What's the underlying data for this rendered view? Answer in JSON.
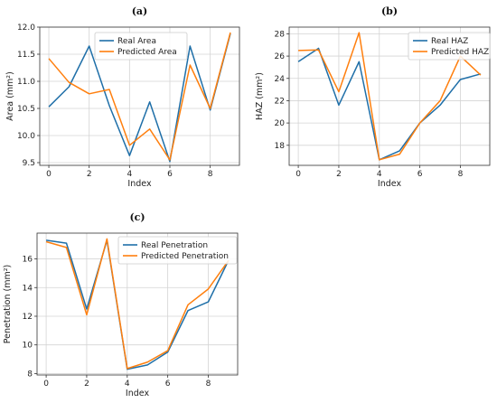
{
  "chart_data": [
    {
      "type": "line",
      "panel_label": "(a)",
      "xlabel": "Index",
      "ylabel": "Area (mm²)",
      "xlim": [
        -0.45,
        9.45
      ],
      "ylim": [
        9.45,
        12.0
      ],
      "xticks": [
        0,
        2,
        4,
        6,
        8
      ],
      "yticks": [
        9.5,
        10.0,
        10.5,
        11.0,
        11.5,
        12.0
      ],
      "ytick_labels": [
        "9.5",
        "10.0",
        "10.5",
        "11.0",
        "11.5",
        "12.0"
      ],
      "grid": true,
      "legend_position": "top-center",
      "x": [
        0,
        1,
        2,
        3,
        4,
        5,
        6,
        7,
        8,
        9
      ],
      "series": [
        {
          "name": "Real Area",
          "color": "#1f6fa8",
          "values": [
            10.53,
            10.9,
            11.65,
            10.55,
            9.63,
            10.62,
            9.52,
            11.65,
            10.47,
            11.88
          ]
        },
        {
          "name": "Predicted Area",
          "color": "#ff7f0e",
          "values": [
            11.42,
            10.98,
            10.77,
            10.85,
            9.82,
            10.12,
            9.55,
            11.3,
            10.5,
            11.9
          ]
        }
      ]
    },
    {
      "type": "line",
      "panel_label": "(b)",
      "xlabel": "Index",
      "ylabel": "HAZ (mm²)",
      "xlim": [
        -0.45,
        9.45
      ],
      "ylim": [
        16.2,
        28.6
      ],
      "xticks": [
        0,
        2,
        4,
        6,
        8
      ],
      "yticks": [
        18,
        20,
        22,
        24,
        26,
        28
      ],
      "ytick_labels": [
        "18",
        "20",
        "22",
        "24",
        "26",
        "28"
      ],
      "grid": true,
      "legend_position": "top-right",
      "x": [
        0,
        1,
        2,
        3,
        4,
        5,
        6,
        7,
        8,
        9
      ],
      "series": [
        {
          "name": "Real HAZ",
          "color": "#1f6fa8",
          "values": [
            25.5,
            26.7,
            21.6,
            25.5,
            16.7,
            17.5,
            20.0,
            21.6,
            23.9,
            24.4
          ]
        },
        {
          "name": "Predicted HAZ",
          "color": "#ff7f0e",
          "values": [
            26.5,
            26.55,
            22.8,
            28.1,
            16.7,
            17.2,
            20.0,
            22.0,
            26.0,
            24.3
          ]
        }
      ]
    },
    {
      "type": "line",
      "panel_label": "(c)",
      "xlabel": "Index",
      "ylabel": "Penetration (mm²)",
      "xlim": [
        -0.45,
        9.45
      ],
      "ylim": [
        7.9,
        17.8
      ],
      "xticks": [
        0,
        2,
        4,
        6,
        8
      ],
      "yticks": [
        8,
        10,
        12,
        14,
        16
      ],
      "ytick_labels": [
        "8",
        "10",
        "12",
        "14",
        "16"
      ],
      "grid": true,
      "legend_position": "top-right",
      "x": [
        0,
        1,
        2,
        3,
        4,
        5,
        6,
        7,
        8,
        9
      ],
      "series": [
        {
          "name": "Real Penetration",
          "color": "#1f6fa8",
          "values": [
            17.3,
            17.1,
            12.5,
            17.3,
            8.3,
            8.6,
            9.5,
            12.4,
            13.0,
            15.9
          ]
        },
        {
          "name": "Predicted Penetration",
          "color": "#ff7f0e",
          "values": [
            17.2,
            16.8,
            12.1,
            17.4,
            8.35,
            8.8,
            9.6,
            12.8,
            13.9,
            15.9
          ]
        }
      ]
    }
  ]
}
